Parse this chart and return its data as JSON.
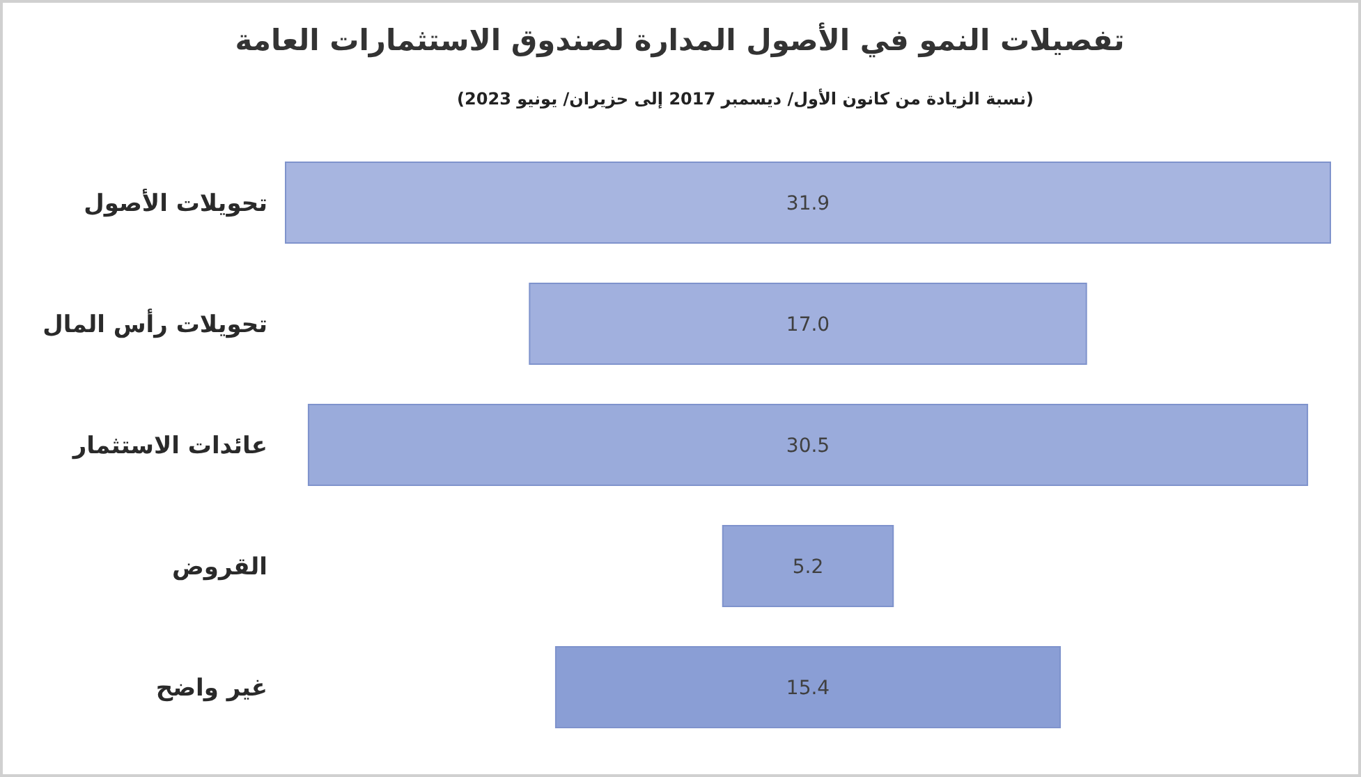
{
  "chart_data": {
    "type": "other",
    "title": "تفصيلات النمو في الأصول المدارة لصندوق الاستثمارات العامة",
    "subtitle": "(نسبة الزيادة من كانون الأول/ ديسمبر 2017 إلى حزيران/ يونيو 2023)",
    "categories": [
      "تحويلات الأصول",
      "تحويلات رأس المال",
      "عائدات الاستثمار",
      "القروض",
      "غير واضح"
    ],
    "values": [
      31.9,
      17.0,
      30.5,
      5.2,
      15.4
    ],
    "value_labels": [
      "31.9",
      "17.0",
      "30.5",
      "5.2",
      "15.4"
    ],
    "colors": [
      "#a7b5e0",
      "#a1b0de",
      "#9aabdb",
      "#93a5d8",
      "#8a9ed5"
    ]
  }
}
